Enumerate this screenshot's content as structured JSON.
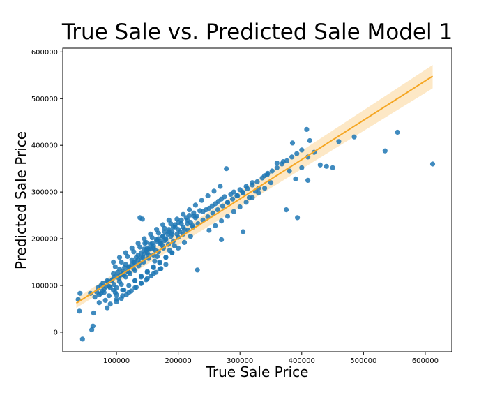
{
  "chart_data": {
    "type": "scatter",
    "title": "True Sale vs. Predicted Sale Model 1",
    "xlabel": "True Sale Price",
    "ylabel": "Predicted Sale Price",
    "xlim": [
      13000,
      643000
    ],
    "ylim": [
      -42000,
      608000
    ],
    "xticks": [
      100000,
      200000,
      300000,
      400000,
      500000,
      600000
    ],
    "yticks": [
      0,
      100000,
      200000,
      300000,
      400000,
      500000,
      600000
    ],
    "xtick_labels": [
      "100000",
      "200000",
      "300000",
      "400000",
      "500000",
      "600000"
    ],
    "ytick_labels": [
      "0",
      "100000",
      "200000",
      "300000",
      "400000",
      "500000",
      "600000"
    ],
    "grid": false,
    "colors": {
      "points": "#1f77b4",
      "regression_line": "#f5a623",
      "confidence_band": "#fde2b8"
    },
    "regression": {
      "x": [
        35000,
        612000
      ],
      "y": [
        62000,
        548000
      ],
      "ci_low_at_end": 522000,
      "ci_high_at_end": 572000,
      "ci_low_at_start": 52000,
      "ci_high_at_start": 72000
    },
    "points": {
      "x": [
        38000,
        41000,
        40000,
        45000,
        58000,
        62000,
        60000,
        63000,
        68000,
        72000,
        75000,
        77000,
        80000,
        82000,
        85000,
        88000,
        90000,
        92000,
        95000,
        98000,
        100000,
        103000,
        105000,
        108000,
        110000,
        112000,
        115000,
        118000,
        120000,
        122000,
        125000,
        128000,
        130000,
        132000,
        135000,
        138000,
        140000,
        143000,
        145000,
        148000,
        150000,
        152000,
        155000,
        158000,
        160000,
        163000,
        165000,
        168000,
        170000,
        172000,
        175000,
        178000,
        180000,
        183000,
        185000,
        188000,
        190000,
        192000,
        195000,
        198000,
        200000,
        203000,
        205000,
        208000,
        210000,
        213000,
        215000,
        218000,
        220000,
        223000,
        225000,
        228000,
        230000,
        235000,
        240000,
        245000,
        250000,
        255000,
        260000,
        265000,
        270000,
        275000,
        280000,
        285000,
        290000,
        295000,
        300000,
        305000,
        310000,
        315000,
        320000,
        325000,
        330000,
        340000,
        345000,
        350000,
        360000,
        370000,
        380000,
        390000,
        400000,
        410000,
        420000,
        430000,
        440000,
        450000,
        460000,
        485000,
        535000,
        555000,
        612000,
        85000,
        95000,
        105000,
        115000,
        125000,
        135000,
        145000,
        155000,
        165000,
        175000,
        185000,
        195000,
        205000,
        215000,
        225000,
        100000,
        110000,
        120000,
        130000,
        140000,
        150000,
        160000,
        170000,
        180000,
        190000,
        90000,
        100000,
        110000,
        120000,
        130000,
        140000,
        150000,
        160000,
        170000,
        180000,
        231000,
        270000,
        278000,
        305000,
        375000,
        393000,
        408000,
        413000,
        410000,
        385000,
        98000,
        108000,
        118000,
        128000,
        138000,
        148000,
        158000,
        168000,
        178000,
        188000,
        198000,
        208000,
        218000,
        228000,
        238000,
        248000,
        258000,
        268000,
        65000,
        72000,
        80000,
        88000,
        96000,
        104000,
        112000,
        120000,
        128000,
        136000,
        144000,
        152000,
        160000,
        168000,
        176000,
        184000,
        192000,
        200000,
        208000,
        216000,
        224000,
        232000,
        240000,
        248000,
        256000,
        264000,
        272000,
        280000,
        288000,
        296000,
        304000,
        312000,
        320000,
        328000,
        336000,
        344000,
        352000,
        360000,
        368000,
        376000,
        384000,
        392000,
        400000,
        130000,
        140000,
        150000,
        160000,
        170000,
        180000,
        190000,
        200000,
        210000,
        220000,
        110000,
        120000,
        130000,
        140000,
        150000,
        160000,
        170000,
        180000,
        190000,
        200000,
        100000,
        108000,
        116000,
        124000,
        132000,
        140000,
        148000,
        156000,
        164000,
        172000,
        95000,
        105000,
        115000,
        125000,
        135000,
        145000,
        155000,
        165000,
        175000,
        185000,
        250000,
        260000,
        270000,
        280000,
        290000,
        300000,
        310000,
        320000,
        330000,
        340000,
        70000,
        75000,
        78000,
        83000,
        86000,
        93000,
        97000,
        102000,
        107000,
        113000,
        138000,
        142000,
        146000,
        152000,
        162000,
        166000,
        174000,
        178000,
        186000,
        194000
      ],
      "y": [
        70000,
        83000,
        45000,
        -15000,
        83000,
        13000,
        5000,
        41000,
        86000,
        63000,
        83000,
        88000,
        92000,
        68000,
        52000,
        78000,
        95000,
        110000,
        90000,
        85000,
        95000,
        120000,
        108000,
        102000,
        125000,
        90000,
        118000,
        130000,
        140000,
        125000,
        145000,
        150000,
        132000,
        160000,
        155000,
        148000,
        170000,
        160000,
        168000,
        175000,
        180000,
        165000,
        178000,
        190000,
        185000,
        175000,
        198000,
        200000,
        195000,
        190000,
        205000,
        215000,
        198000,
        210000,
        220000,
        205000,
        215000,
        225000,
        230000,
        210000,
        235000,
        215000,
        240000,
        225000,
        220000,
        245000,
        232000,
        250000,
        235000,
        228000,
        255000,
        245000,
        248000,
        260000,
        258000,
        262000,
        265000,
        270000,
        275000,
        280000,
        285000,
        290000,
        278000,
        295000,
        300000,
        292000,
        305000,
        298000,
        312000,
        288000,
        320000,
        302000,
        308000,
        335000,
        340000,
        320000,
        362000,
        365000,
        345000,
        328000,
        352000,
        375000,
        385000,
        358000,
        355000,
        352000,
        408000,
        418000,
        388000,
        428000,
        360000,
        110000,
        125000,
        135000,
        145000,
        155000,
        165000,
        178000,
        188000,
        195000,
        205000,
        215000,
        225000,
        232000,
        240000,
        248000,
        80000,
        90000,
        100000,
        110000,
        120000,
        130000,
        140000,
        150000,
        160000,
        170000,
        60000,
        70000,
        78000,
        85000,
        95000,
        105000,
        115000,
        125000,
        135000,
        145000,
        133000,
        198000,
        350000,
        215000,
        262000,
        245000,
        434000,
        410000,
        325000,
        405000,
        140000,
        150000,
        162000,
        172000,
        182000,
        192000,
        202000,
        212000,
        222000,
        232000,
        242000,
        252000,
        262000,
        272000,
        282000,
        292000,
        302000,
        312000,
        75000,
        80000,
        85000,
        98000,
        102000,
        115000,
        122000,
        128000,
        135000,
        142000,
        150000,
        158000,
        165000,
        172000,
        180000,
        188000,
        195000,
        203000,
        210000,
        218000,
        225000,
        232000,
        240000,
        247000,
        255000,
        262000,
        270000,
        277000,
        285000,
        292000,
        300000,
        307000,
        315000,
        322000,
        330000,
        337000,
        345000,
        352000,
        360000,
        367000,
        375000,
        382000,
        390000,
        110000,
        118000,
        128000,
        138000,
        148000,
        160000,
        170000,
        180000,
        192000,
        205000,
        130000,
        140000,
        150000,
        160000,
        170000,
        180000,
        190000,
        200000,
        210000,
        220000,
        65000,
        72000,
        80000,
        88000,
        96000,
        104000,
        112000,
        120000,
        128000,
        136000,
        150000,
        160000,
        170000,
        180000,
        190000,
        200000,
        210000,
        220000,
        230000,
        240000,
        218000,
        228000,
        238000,
        248000,
        258000,
        268000,
        278000,
        288000,
        298000,
        308000,
        95000,
        100000,
        105000,
        98000,
        108000,
        112000,
        118000,
        128000,
        122000,
        138000,
        245000,
        242000,
        190000,
        178000,
        152000,
        162000,
        186000,
        196000,
        175000,
        185000
      ]
    }
  }
}
